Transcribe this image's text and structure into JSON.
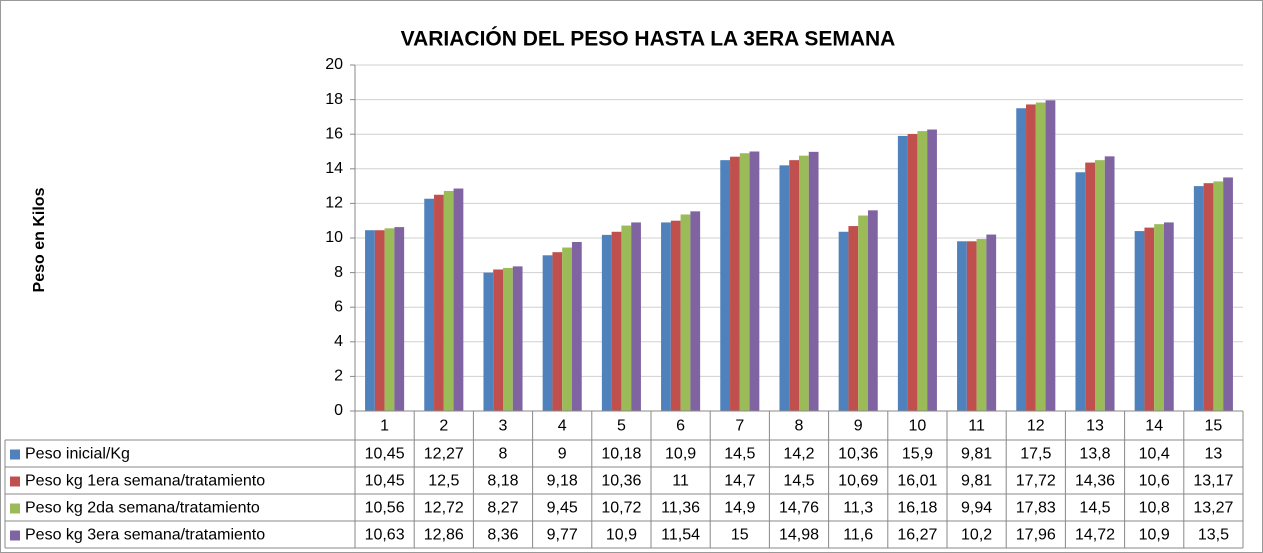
{
  "chart_data": {
    "type": "bar",
    "title": "VARIACIÓN  DEL PESO HASTA LA 3ERA SEMANA",
    "y_label": "Peso en Kilos",
    "categories": [
      "1",
      "2",
      "3",
      "4",
      "5",
      "6",
      "7",
      "8",
      "9",
      "10",
      "11",
      "12",
      "13",
      "14",
      "15"
    ],
    "series": [
      {
        "name": "Peso inicial/Kg",
        "color": "#4f81bd",
        "values": [
          10.45,
          12.27,
          8,
          9,
          10.18,
          10.9,
          14.5,
          14.2,
          10.36,
          15.9,
          9.81,
          17.5,
          13.8,
          10.4,
          13
        ],
        "value_labels": [
          "10,45",
          "12,27",
          "8",
          "9",
          "10,18",
          "10,9",
          "14,5",
          "14,2",
          "10,36",
          "15,9",
          "9,81",
          "17,5",
          "13,8",
          "10,4",
          "13"
        ]
      },
      {
        "name": "Peso kg 1era semana/tratamiento",
        "color": "#c0504d",
        "values": [
          10.45,
          12.5,
          8.18,
          9.18,
          10.36,
          11,
          14.7,
          14.5,
          10.69,
          16.01,
          9.81,
          17.72,
          14.36,
          10.6,
          13.17
        ],
        "value_labels": [
          "10,45",
          "12,5",
          "8,18",
          "9,18",
          "10,36",
          "11",
          "14,7",
          "14,5",
          "10,69",
          "16,01",
          "9,81",
          "17,72",
          "14,36",
          "10,6",
          "13,17"
        ]
      },
      {
        "name": "Peso kg 2da semana/tratamiento",
        "color": "#9bbb59",
        "values": [
          10.56,
          12.72,
          8.27,
          9.45,
          10.72,
          11.36,
          14.9,
          14.76,
          11.3,
          16.18,
          9.94,
          17.83,
          14.5,
          10.8,
          13.27
        ],
        "value_labels": [
          "10,56",
          "12,72",
          "8,27",
          "9,45",
          "10,72",
          "11,36",
          "14,9",
          "14,76",
          "11,3",
          "16,18",
          "9,94",
          "17,83",
          "14,5",
          "10,8",
          "13,27"
        ]
      },
      {
        "name": "Peso kg 3era semana/tratamiento",
        "color": "#8064a2",
        "values": [
          10.63,
          12.86,
          8.36,
          9.77,
          10.9,
          11.54,
          15,
          14.98,
          11.6,
          16.27,
          10.2,
          17.96,
          14.72,
          10.9,
          13.5
        ],
        "value_labels": [
          "10,63",
          "12,86",
          "8,36",
          "9,77",
          "10,9",
          "11,54",
          "15",
          "14,98",
          "11,6",
          "16,27",
          "10,2",
          "17,96",
          "14,72",
          "10,9",
          "13,5"
        ]
      }
    ],
    "ylim": [
      0,
      20
    ],
    "yticks": [
      0,
      2,
      4,
      6,
      8,
      10,
      12,
      14,
      16,
      18,
      20
    ],
    "grid": true
  }
}
